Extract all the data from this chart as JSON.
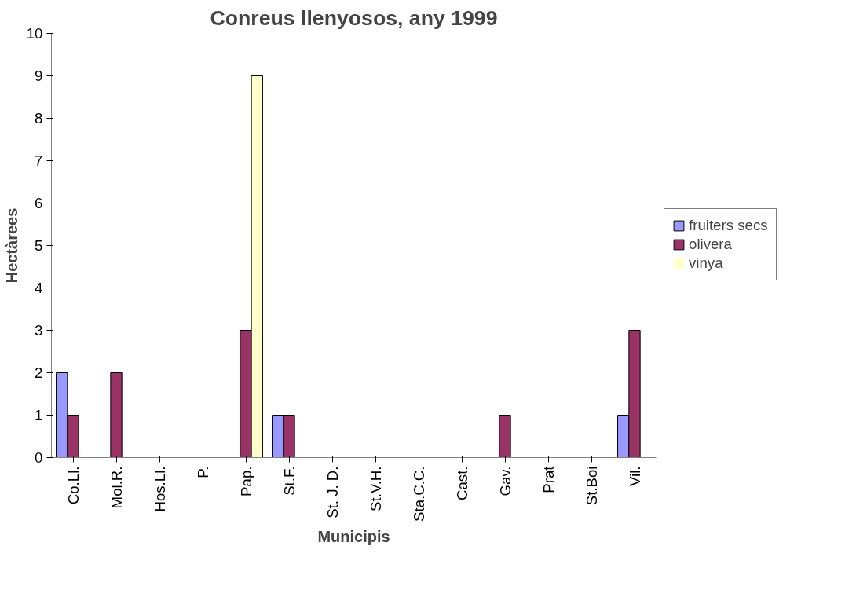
{
  "chart_data": {
    "type": "bar",
    "title": "Conreus llenyosos, any 1999",
    "xlabel": "Municipis",
    "ylabel": "Hectàrees",
    "categories": [
      "Co.Ll.",
      "Mol.R.",
      "Hos.Ll.",
      "P.",
      "Pap.",
      "St.F.",
      "St. J. D.",
      "St.V.H.",
      "Sta.C.C.",
      "Cast.",
      "Gav.",
      "Prat",
      "St.Boi",
      "Vil."
    ],
    "series": [
      {
        "name": "fruiters secs",
        "color": "#9999ff",
        "values": [
          2,
          0,
          0,
          0,
          0,
          1,
          0,
          0,
          0,
          0,
          0,
          0,
          0,
          1
        ]
      },
      {
        "name": "olivera",
        "color": "#993366",
        "values": [
          1,
          2,
          0,
          0,
          3,
          1,
          0,
          0,
          0,
          0,
          1,
          0,
          0,
          3
        ]
      },
      {
        "name": "vinya",
        "color": "#ffffcc",
        "values": [
          0,
          0,
          0,
          0,
          9,
          0,
          0,
          0,
          0,
          0,
          0,
          0,
          0,
          0
        ]
      }
    ],
    "ylim": [
      0,
      10
    ],
    "yticks": [
      0,
      1,
      2,
      3,
      4,
      5,
      6,
      7,
      8,
      9,
      10
    ],
    "grid": false,
    "legend": "right"
  }
}
